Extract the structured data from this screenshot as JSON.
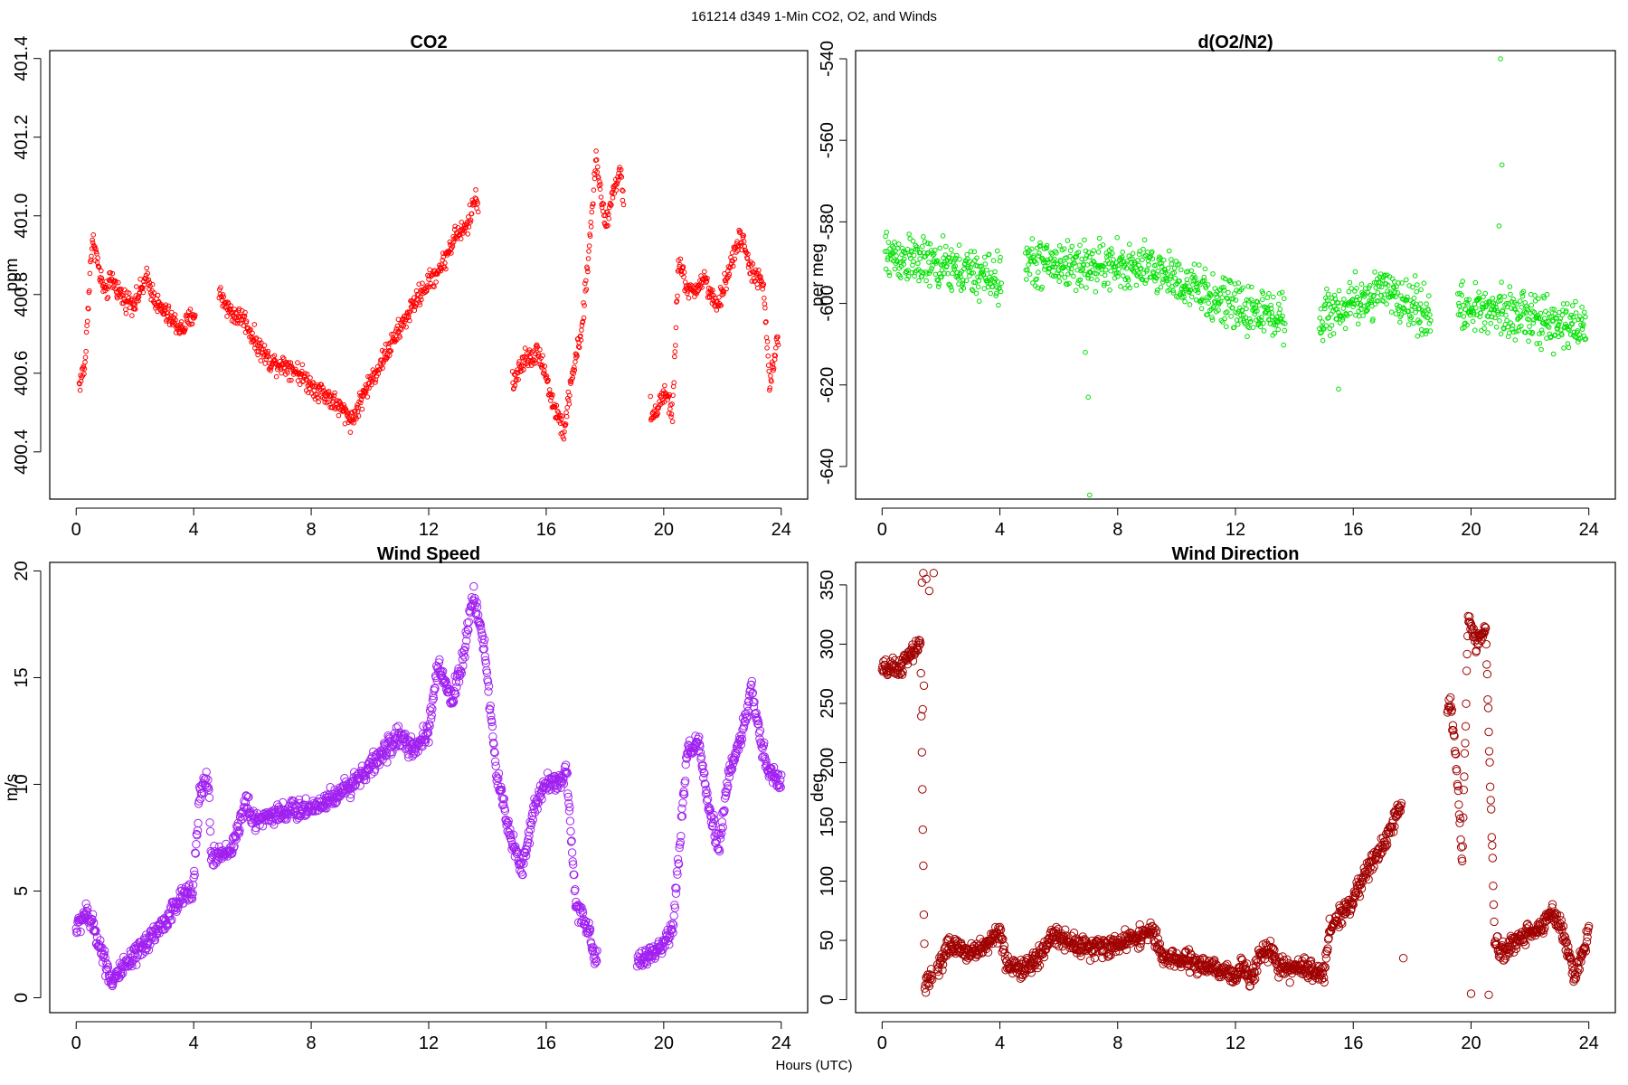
{
  "figure": {
    "title": "161214   d349   1-Min CO2, O2, and Winds",
    "xlabel": "Hours (UTC)"
  },
  "chart_data": [
    {
      "type": "scatter",
      "title": "CO2",
      "xlabel": "",
      "ylabel": "ppm",
      "color": "#ff0000",
      "xlim": [
        -0.9,
        24.9
      ],
      "ylim": [
        400.28,
        401.42
      ],
      "x_ticks": [
        0,
        4,
        8,
        12,
        16,
        20,
        24
      ],
      "y_ticks": [
        400.4,
        400.6,
        400.8,
        401.0,
        401.2,
        401.4
      ],
      "y_tick_labels": [
        "400.4",
        "400.6",
        "400.8",
        "401.0",
        "401.2",
        "401.4"
      ],
      "anchors": [
        [
          0.1,
          400.57
        ],
        [
          0.3,
          400.62
        ],
        [
          0.5,
          400.9
        ],
        [
          0.6,
          400.94
        ],
        [
          0.8,
          400.85
        ],
        [
          1.0,
          400.8
        ],
        [
          1.2,
          400.84
        ],
        [
          1.6,
          400.79
        ],
        [
          2.0,
          400.78
        ],
        [
          2.4,
          400.84
        ],
        [
          2.8,
          400.77
        ],
        [
          3.2,
          400.74
        ],
        [
          3.6,
          400.71
        ],
        [
          4.0,
          400.75
        ],
        [
          4.9,
          400.8
        ],
        [
          5.3,
          400.75
        ],
        [
          5.7,
          400.74
        ],
        [
          6.1,
          400.68
        ],
        [
          6.6,
          400.63
        ],
        [
          7.2,
          400.62
        ],
        [
          7.6,
          400.6
        ],
        [
          8.0,
          400.57
        ],
        [
          8.6,
          400.54
        ],
        [
          9.0,
          400.51
        ],
        [
          9.4,
          400.48
        ],
        [
          9.8,
          400.55
        ],
        [
          10.4,
          400.63
        ],
        [
          11.0,
          400.71
        ],
        [
          11.6,
          400.79
        ],
        [
          12.0,
          400.83
        ],
        [
          12.5,
          400.88
        ],
        [
          12.9,
          400.95
        ],
        [
          13.3,
          400.97
        ],
        [
          13.6,
          401.05
        ],
        [
          14.9,
          400.58
        ],
        [
          15.3,
          400.64
        ],
        [
          15.8,
          400.65
        ],
        [
          16.2,
          400.53
        ],
        [
          16.6,
          400.45
        ],
        [
          16.9,
          400.6
        ],
        [
          17.2,
          400.7
        ],
        [
          17.4,
          400.86
        ],
        [
          17.7,
          401.15
        ],
        [
          18.0,
          400.98
        ],
        [
          18.5,
          401.12
        ],
        [
          19.6,
          400.48
        ],
        [
          20.0,
          400.55
        ],
        [
          20.3,
          400.5
        ],
        [
          20.5,
          400.88
        ],
        [
          20.9,
          400.8
        ],
        [
          21.4,
          400.84
        ],
        [
          21.8,
          400.76
        ],
        [
          22.3,
          400.88
        ],
        [
          22.6,
          400.95
        ],
        [
          23.0,
          400.86
        ],
        [
          23.4,
          400.82
        ],
        [
          23.6,
          400.57
        ],
        [
          23.9,
          400.69
        ]
      ],
      "x_range": [
        0.1,
        23.9
      ],
      "gaps": [
        [
          4.05,
          4.85
        ],
        [
          13.7,
          14.85
        ],
        [
          18.65,
          19.55
        ]
      ],
      "noise": 0.025
    },
    {
      "type": "scatter",
      "title": "d(O2/N2)",
      "xlabel": "",
      "ylabel": "per meg",
      "color": "#00e000",
      "xlim": [
        -0.9,
        24.9
      ],
      "ylim": [
        -648,
        -538
      ],
      "x_ticks": [
        0,
        4,
        8,
        12,
        16,
        20,
        24
      ],
      "y_ticks": [
        -640,
        -620,
        -600,
        -580,
        -560,
        -540
      ],
      "y_tick_labels": [
        "-640",
        "-620",
        "-600",
        "-580",
        "-560",
        "-540"
      ],
      "anchors": [
        [
          0.1,
          -588
        ],
        [
          2.0,
          -591
        ],
        [
          4.0,
          -594
        ],
        [
          5.0,
          -590
        ],
        [
          8.0,
          -591
        ],
        [
          9.5,
          -592
        ],
        [
          11.0,
          -598
        ],
        [
          12.0,
          -601
        ],
        [
          13.5,
          -603
        ],
        [
          15.0,
          -603
        ],
        [
          17.0,
          -597
        ],
        [
          18.5,
          -602
        ],
        [
          19.5,
          -602
        ],
        [
          21.0,
          -601
        ],
        [
          22.5,
          -605
        ],
        [
          23.9,
          -606
        ]
      ],
      "x_range": [
        0.1,
        23.9
      ],
      "gaps": [
        [
          4.05,
          4.85
        ],
        [
          13.7,
          14.85
        ],
        [
          18.65,
          19.55
        ]
      ],
      "noise": 5.5,
      "outliers": [
        [
          7.0,
          -623
        ],
        [
          7.05,
          -647
        ],
        [
          6.9,
          -612
        ],
        [
          21.0,
          -540
        ],
        [
          21.05,
          -566
        ],
        [
          20.95,
          -581
        ],
        [
          15.5,
          -621
        ]
      ]
    },
    {
      "type": "scatter",
      "title": "Wind Speed",
      "xlabel": "",
      "ylabel": "m/s",
      "color": "#a020f0",
      "xlim": [
        -0.9,
        24.9
      ],
      "ylim": [
        -0.7,
        20.4
      ],
      "x_ticks": [
        0,
        4,
        8,
        12,
        16,
        20,
        24
      ],
      "y_ticks": [
        0,
        5,
        10,
        15,
        20
      ],
      "y_tick_labels": [
        "0",
        "5",
        "10",
        "15",
        "20"
      ],
      "anchors": [
        [
          0.0,
          3.2
        ],
        [
          0.3,
          4.0
        ],
        [
          0.6,
          3.3
        ],
        [
          1.2,
          0.8
        ],
        [
          1.5,
          1.2
        ],
        [
          2.0,
          1.9
        ],
        [
          2.5,
          2.8
        ],
        [
          3.0,
          3.5
        ],
        [
          3.5,
          4.5
        ],
        [
          4.0,
          5.3
        ],
        [
          4.2,
          9.5
        ],
        [
          4.5,
          10.3
        ],
        [
          4.6,
          6.5
        ],
        [
          5.0,
          6.8
        ],
        [
          5.3,
          7.0
        ],
        [
          5.8,
          9.2
        ],
        [
          6.0,
          8.3
        ],
        [
          7.0,
          8.7
        ],
        [
          8.0,
          8.9
        ],
        [
          9.0,
          9.6
        ],
        [
          10.0,
          10.8
        ],
        [
          11.0,
          12.3
        ],
        [
          11.5,
          11.5
        ],
        [
          12.0,
          12.5
        ],
        [
          12.3,
          15.5
        ],
        [
          12.8,
          14.0
        ],
        [
          13.2,
          16.0
        ],
        [
          13.5,
          19.0
        ],
        [
          13.9,
          16.5
        ],
        [
          14.3,
          10.5
        ],
        [
          14.8,
          7.5
        ],
        [
          15.2,
          6.0
        ],
        [
          15.6,
          9.0
        ],
        [
          16.0,
          10.2
        ],
        [
          16.3,
          10.0
        ],
        [
          16.7,
          10.5
        ],
        [
          17.0,
          4.5
        ],
        [
          17.5,
          3.0
        ],
        [
          17.6,
          1.8
        ],
        [
          19.2,
          1.8
        ],
        [
          19.7,
          2.0
        ],
        [
          20.0,
          2.5
        ],
        [
          20.3,
          3.0
        ],
        [
          20.5,
          6.5
        ],
        [
          20.8,
          11.5
        ],
        [
          21.2,
          12.0
        ],
        [
          21.5,
          9.0
        ],
        [
          21.9,
          7.0
        ],
        [
          22.2,
          10.5
        ],
        [
          22.6,
          12.0
        ],
        [
          23.0,
          14.5
        ],
        [
          23.3,
          12.0
        ],
        [
          23.6,
          10.5
        ],
        [
          24.0,
          10.0
        ]
      ],
      "x_range": [
        0.0,
        24.0
      ],
      "gaps": [
        [
          17.75,
          19.1
        ]
      ],
      "noise": 0.45
    },
    {
      "type": "scatter",
      "title": "Wind Direction",
      "xlabel": "",
      "ylabel": "deg",
      "color": "#a00000",
      "xlim": [
        -0.9,
        24.9
      ],
      "ylim": [
        -11,
        369
      ],
      "x_ticks": [
        0,
        4,
        8,
        12,
        16,
        20,
        24
      ],
      "y_ticks": [
        0,
        50,
        100,
        150,
        200,
        250,
        300,
        350
      ],
      "y_tick_labels": [
        "0",
        "50",
        "100",
        "150",
        "200",
        "250",
        "300",
        "350"
      ],
      "anchors": [
        [
          0.0,
          278
        ],
        [
          0.6,
          280
        ],
        [
          1.0,
          292
        ],
        [
          1.3,
          300
        ],
        [
          1.45,
          15
        ],
        [
          1.9,
          25
        ],
        [
          2.2,
          45
        ],
        [
          3.0,
          40
        ],
        [
          3.5,
          45
        ],
        [
          4.0,
          60
        ],
        [
          4.2,
          30
        ],
        [
          4.8,
          25
        ],
        [
          5.3,
          35
        ],
        [
          5.8,
          55
        ],
        [
          6.5,
          48
        ],
        [
          7.2,
          43
        ],
        [
          7.8,
          45
        ],
        [
          8.5,
          52
        ],
        [
          9.2,
          58
        ],
        [
          9.5,
          35
        ],
        [
          10.5,
          32
        ],
        [
          11.5,
          24
        ],
        [
          12.0,
          20
        ],
        [
          12.2,
          30
        ],
        [
          12.5,
          15
        ],
        [
          12.8,
          40
        ],
        [
          13.2,
          42
        ],
        [
          13.5,
          25
        ],
        [
          14.5,
          27
        ],
        [
          15.0,
          20
        ],
        [
          15.2,
          60
        ],
        [
          16.0,
          85
        ],
        [
          16.5,
          110
        ],
        [
          17.0,
          130
        ],
        [
          17.5,
          158
        ],
        [
          19.3,
          250
        ],
        [
          19.5,
          200
        ],
        [
          19.7,
          120
        ],
        [
          19.9,
          320
        ],
        [
          20.2,
          300
        ],
        [
          20.5,
          315
        ],
        [
          20.8,
          50
        ],
        [
          21.0,
          40
        ],
        [
          21.3,
          45
        ],
        [
          21.8,
          55
        ],
        [
          22.3,
          60
        ],
        [
          22.8,
          75
        ],
        [
          23.2,
          50
        ],
        [
          23.5,
          20
        ],
        [
          23.8,
          40
        ],
        [
          24.0,
          60
        ]
      ],
      "x_range": [
        0.0,
        24.0
      ],
      "gaps": [
        [
          1.7,
          1.85
        ],
        [
          17.65,
          19.2
        ]
      ],
      "noise": 7.5,
      "outliers": [
        [
          1.4,
          360
        ],
        [
          1.5,
          355
        ],
        [
          1.35,
          352
        ],
        [
          1.6,
          345
        ],
        [
          1.75,
          360
        ],
        [
          1.38,
          245
        ],
        [
          1.42,
          265
        ],
        [
          17.7,
          35
        ],
        [
          20.0,
          5
        ],
        [
          20.6,
          4
        ]
      ]
    }
  ]
}
